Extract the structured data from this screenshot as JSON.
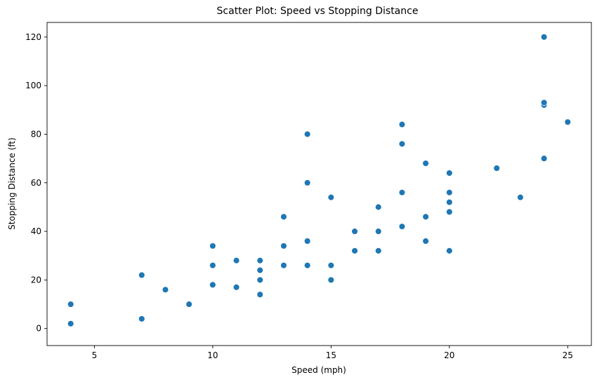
{
  "chart_data": {
    "type": "scatter",
    "title": "Scatter Plot: Speed vs Stopping Distance",
    "xlabel": "Speed (mph)",
    "ylabel": "Stopping Distance (ft)",
    "xlim": [
      3,
      26
    ],
    "ylim": [
      -7,
      126
    ],
    "xticks": [
      5,
      10,
      15,
      20,
      25
    ],
    "yticks": [
      0,
      20,
      40,
      60,
      80,
      100,
      120
    ],
    "grid": false,
    "color": "#1f77b4",
    "points": [
      {
        "x": 4,
        "y": 2
      },
      {
        "x": 4,
        "y": 10
      },
      {
        "x": 7,
        "y": 4
      },
      {
        "x": 7,
        "y": 22
      },
      {
        "x": 8,
        "y": 16
      },
      {
        "x": 9,
        "y": 10
      },
      {
        "x": 10,
        "y": 18
      },
      {
        "x": 10,
        "y": 26
      },
      {
        "x": 10,
        "y": 34
      },
      {
        "x": 11,
        "y": 17
      },
      {
        "x": 11,
        "y": 28
      },
      {
        "x": 12,
        "y": 14
      },
      {
        "x": 12,
        "y": 20
      },
      {
        "x": 12,
        "y": 24
      },
      {
        "x": 12,
        "y": 28
      },
      {
        "x": 13,
        "y": 26
      },
      {
        "x": 13,
        "y": 34
      },
      {
        "x": 13,
        "y": 46
      },
      {
        "x": 14,
        "y": 26
      },
      {
        "x": 14,
        "y": 36
      },
      {
        "x": 14,
        "y": 60
      },
      {
        "x": 14,
        "y": 80
      },
      {
        "x": 15,
        "y": 20
      },
      {
        "x": 15,
        "y": 26
      },
      {
        "x": 15,
        "y": 54
      },
      {
        "x": 16,
        "y": 32
      },
      {
        "x": 16,
        "y": 40
      },
      {
        "x": 17,
        "y": 32
      },
      {
        "x": 17,
        "y": 40
      },
      {
        "x": 17,
        "y": 50
      },
      {
        "x": 18,
        "y": 42
      },
      {
        "x": 18,
        "y": 56
      },
      {
        "x": 18,
        "y": 76
      },
      {
        "x": 18,
        "y": 84
      },
      {
        "x": 19,
        "y": 36
      },
      {
        "x": 19,
        "y": 46
      },
      {
        "x": 19,
        "y": 68
      },
      {
        "x": 20,
        "y": 32
      },
      {
        "x": 20,
        "y": 48
      },
      {
        "x": 20,
        "y": 52
      },
      {
        "x": 20,
        "y": 56
      },
      {
        "x": 20,
        "y": 64
      },
      {
        "x": 22,
        "y": 66
      },
      {
        "x": 23,
        "y": 54
      },
      {
        "x": 24,
        "y": 70
      },
      {
        "x": 24,
        "y": 92
      },
      {
        "x": 24,
        "y": 93
      },
      {
        "x": 24,
        "y": 120
      },
      {
        "x": 25,
        "y": 85
      }
    ]
  }
}
